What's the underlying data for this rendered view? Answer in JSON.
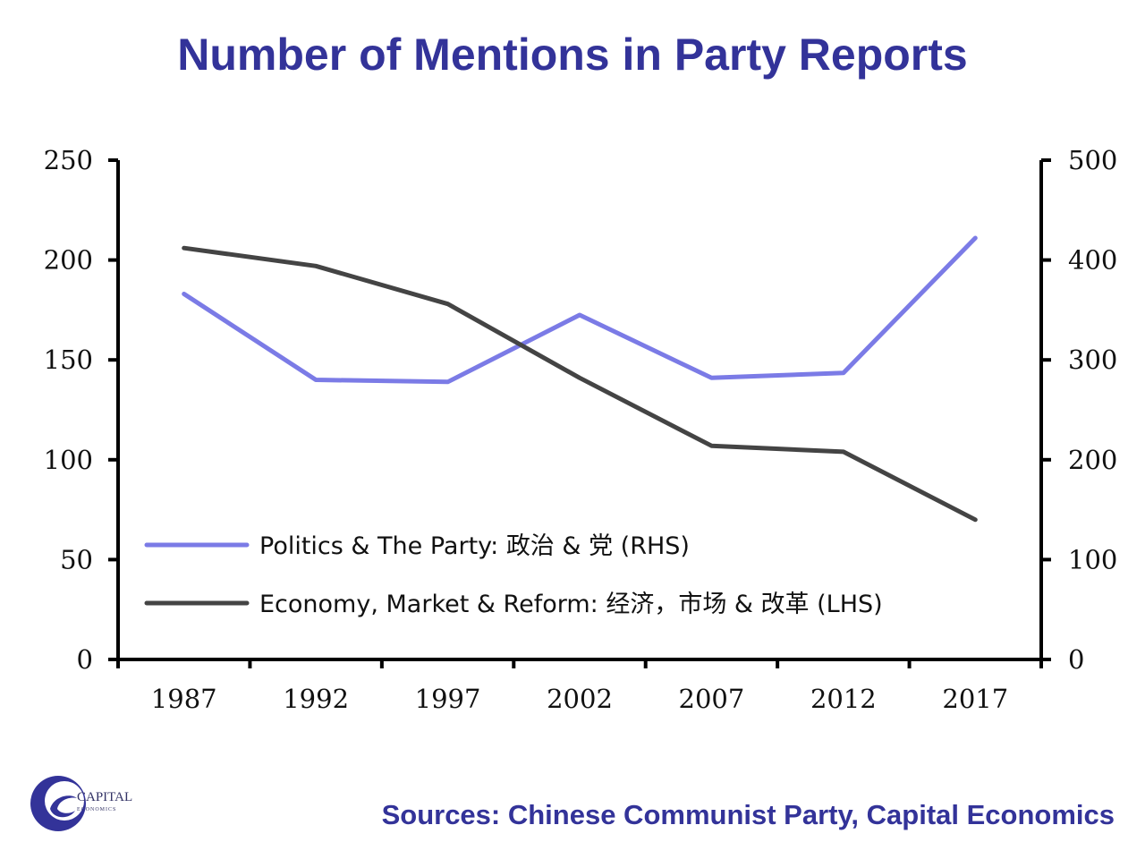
{
  "title": "Number of Mentions in Party Reports",
  "source": "Sources: Chinese Communist Party, Capital Economics",
  "logo": {
    "name": "CAPITAL",
    "sub": "ECONOMICS"
  },
  "colors": {
    "title": "#333399",
    "series_rhs": "#7b7be6",
    "series_lhs": "#444444"
  },
  "chart_data": {
    "type": "line",
    "x": [
      "1987",
      "1992",
      "1997",
      "2002",
      "2007",
      "2012",
      "2017"
    ],
    "y_left": {
      "ticks": [
        "0",
        "50",
        "100",
        "150",
        "200",
        "250"
      ],
      "lim": [
        0,
        250
      ]
    },
    "y_right": {
      "ticks": [
        "0",
        "100",
        "200",
        "300",
        "400",
        "500"
      ],
      "lim": [
        0,
        500
      ]
    },
    "grid": false,
    "legend_position": "bottom-left",
    "series": [
      {
        "name": "Politics & The Party: 政治 & 党 (RHS)",
        "axis": "right",
        "color": "#7b7be6",
        "values": [
          366,
          280,
          278,
          345,
          282,
          287,
          422
        ]
      },
      {
        "name": "Economy, Market & Reform: 经济，市场 & 改革 (LHS)",
        "axis": "left",
        "color": "#444444",
        "values": [
          206,
          197,
          178,
          141,
          107,
          104,
          70
        ]
      }
    ]
  }
}
